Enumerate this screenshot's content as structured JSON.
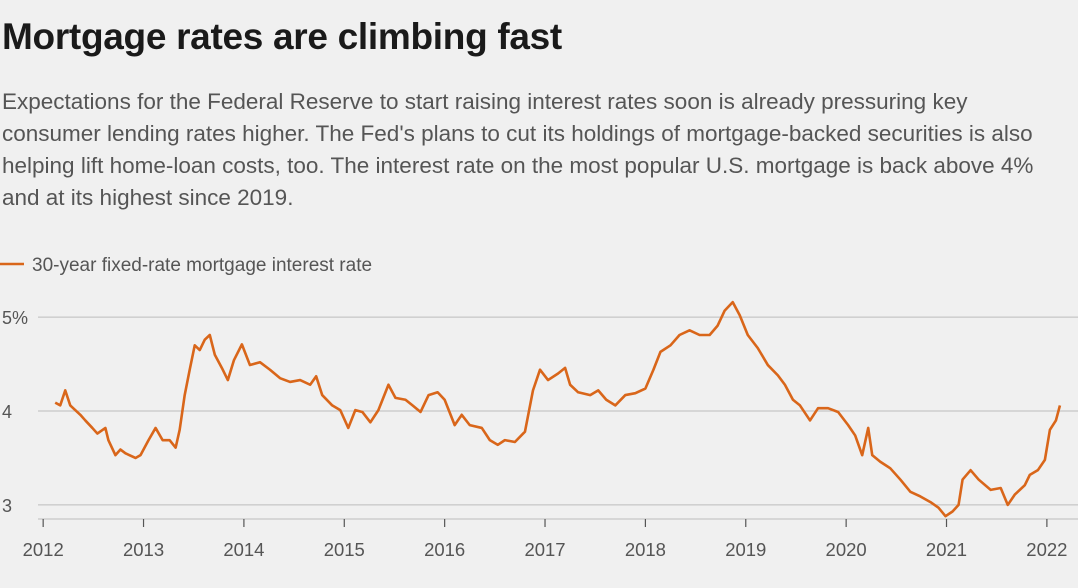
{
  "chart_data": {
    "type": "line",
    "title": "Mortgage rates are climbing fast",
    "subtitle": "Expectations for the Federal Reserve to start raising interest rates soon is already pressuring key consumer lending rates higher. The Fed's plans to cut its holdings of mortgage-backed securities is also helping lift home-loan costs, too. The interest rate on the most popular U.S. mortgage is back above 4% and at its highest since 2019.",
    "x": [
      2012.12,
      2012.17,
      2012.22,
      2012.27,
      2012.37,
      2012.42,
      2012.49,
      2012.54,
      2012.62,
      2012.65,
      2012.72,
      2012.77,
      2012.82,
      2012.92,
      2012.97,
      2013.05,
      2013.12,
      2013.19,
      2013.26,
      2013.32,
      2013.36,
      2013.41,
      2013.46,
      2013.51,
      2013.56,
      2013.61,
      2013.66,
      2013.71,
      2013.78,
      2013.84,
      2013.9,
      2013.98,
      2014.06,
      2014.16,
      2014.26,
      2014.36,
      2014.46,
      2014.56,
      2014.66,
      2014.72,
      2014.78,
      2014.88,
      2014.96,
      2015.04,
      2015.11,
      2015.18,
      2015.26,
      2015.34,
      2015.44,
      2015.51,
      2015.61,
      2015.68,
      2015.76,
      2015.84,
      2015.93,
      2016.0,
      2016.1,
      2016.17,
      2016.25,
      2016.37,
      2016.45,
      2016.53,
      2016.6,
      2016.7,
      2016.8,
      2016.88,
      2016.95,
      2017.03,
      2017.13,
      2017.2,
      2017.25,
      2017.33,
      2017.45,
      2017.53,
      2017.61,
      2017.7,
      2017.8,
      2017.9,
      2018.0,
      2018.08,
      2018.15,
      2018.25,
      2018.34,
      2018.44,
      2018.54,
      2018.64,
      2018.72,
      2018.79,
      2018.87,
      2018.94,
      2019.02,
      2019.12,
      2019.22,
      2019.32,
      2019.39,
      2019.47,
      2019.54,
      2019.64,
      2019.72,
      2019.82,
      2019.92,
      2020.02,
      2020.09,
      2020.16,
      2020.22,
      2020.26,
      2020.34,
      2020.44,
      2020.54,
      2020.64,
      2020.74,
      2020.84,
      2020.92,
      2020.99,
      2021.06,
      2021.12,
      2021.16,
      2021.24,
      2021.32,
      2021.44,
      2021.54,
      2021.61,
      2021.68,
      2021.78,
      2021.83,
      2021.91,
      2021.98,
      2022.03,
      2022.09,
      2022.13
    ],
    "series": [
      {
        "name": "30-year fixed-rate mortgage interest rate",
        "color": "#d9661a",
        "values": [
          4.09,
          4.06,
          4.22,
          4.06,
          3.96,
          3.9,
          3.82,
          3.76,
          3.82,
          3.69,
          3.53,
          3.59,
          3.55,
          3.5,
          3.53,
          3.69,
          3.82,
          3.69,
          3.69,
          3.61,
          3.8,
          4.17,
          4.44,
          4.7,
          4.65,
          4.76,
          4.81,
          4.6,
          4.46,
          4.33,
          4.54,
          4.71,
          4.49,
          4.52,
          4.44,
          4.35,
          4.31,
          4.33,
          4.28,
          4.37,
          4.17,
          4.06,
          4.01,
          3.82,
          4.01,
          3.99,
          3.88,
          4.01,
          4.28,
          4.14,
          4.12,
          4.06,
          3.99,
          4.17,
          4.2,
          4.12,
          3.85,
          3.96,
          3.85,
          3.82,
          3.69,
          3.64,
          3.69,
          3.67,
          3.78,
          4.22,
          4.44,
          4.33,
          4.4,
          4.46,
          4.28,
          4.2,
          4.17,
          4.22,
          4.12,
          4.06,
          4.17,
          4.19,
          4.24,
          4.44,
          4.63,
          4.7,
          4.81,
          4.86,
          4.81,
          4.81,
          4.91,
          5.07,
          5.16,
          5.02,
          4.81,
          4.67,
          4.49,
          4.38,
          4.28,
          4.12,
          4.06,
          3.9,
          4.03,
          4.03,
          3.99,
          3.85,
          3.74,
          3.53,
          3.82,
          3.53,
          3.46,
          3.39,
          3.27,
          3.14,
          3.09,
          3.03,
          2.97,
          2.88,
          2.93,
          3.0,
          3.27,
          3.37,
          3.27,
          3.16,
          3.18,
          3.0,
          3.11,
          3.21,
          3.32,
          3.37,
          3.48,
          3.8,
          3.9,
          4.06
        ]
      }
    ],
    "xlim": [
      2011.57,
      2022.31
    ],
    "xticks": [
      2012,
      2013,
      2014,
      2015,
      2016,
      2017,
      2018,
      2019,
      2020,
      2021,
      2022
    ],
    "ylim": [
      2.85,
      5.3
    ],
    "yticks": [
      3,
      4,
      {
        "value": 5,
        "label": "5%"
      }
    ],
    "grid": true
  }
}
